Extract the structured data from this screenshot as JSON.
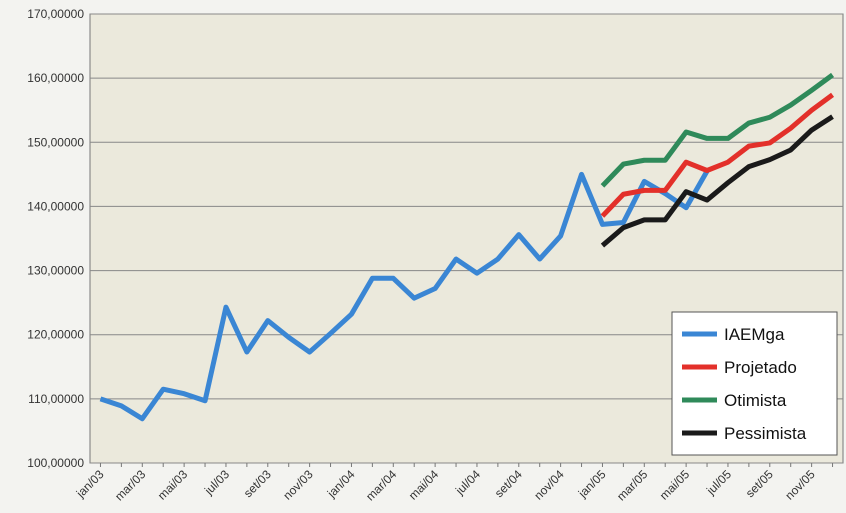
{
  "chart_data": {
    "type": "line",
    "categories": [
      "jan/03",
      null,
      "mar/03",
      null,
      "mai/03",
      null,
      "jul/03",
      null,
      "set/03",
      null,
      "nov/03",
      null,
      "jan/04",
      null,
      "mar/04",
      null,
      "mai/04",
      null,
      "jul/04",
      null,
      "set/04",
      null,
      "nov/04",
      null,
      "jan/05",
      null,
      "mar/05",
      null,
      "mai/05",
      null,
      "jul/05",
      null,
      "set/05",
      null,
      "nov/05",
      null
    ],
    "series": [
      {
        "name": "IAEMga",
        "color": "#3a86d4",
        "values": [
          110.0,
          108.9,
          106.9,
          111.5,
          110.8,
          109.7,
          124.3,
          117.3,
          122.2,
          119.6,
          117.3,
          120.2,
          123.2,
          128.8,
          128.8,
          125.7,
          127.2,
          131.8,
          129.6,
          131.8,
          135.6,
          131.8,
          135.4,
          145.0,
          137.2,
          137.5,
          143.9,
          142.0,
          139.8,
          145.5,
          null,
          null,
          null,
          null,
          null,
          null
        ]
      },
      {
        "name": "Projetado",
        "color": "#e3302a",
        "values": [
          null,
          null,
          null,
          null,
          null,
          null,
          null,
          null,
          null,
          null,
          null,
          null,
          null,
          null,
          null,
          null,
          null,
          null,
          null,
          null,
          null,
          null,
          null,
          null,
          138.5,
          141.9,
          142.5,
          142.5,
          146.9,
          145.6,
          146.9,
          149.4,
          149.9,
          152.2,
          155.0,
          157.4
        ]
      },
      {
        "name": "Otimista",
        "color": "#2f8a5a",
        "values": [
          null,
          null,
          null,
          null,
          null,
          null,
          null,
          null,
          null,
          null,
          null,
          null,
          null,
          null,
          null,
          null,
          null,
          null,
          null,
          null,
          null,
          null,
          null,
          null,
          143.2,
          146.6,
          147.2,
          147.2,
          151.6,
          150.6,
          150.6,
          153.0,
          153.9,
          155.8,
          158.1,
          160.5
        ]
      },
      {
        "name": "Pessimista",
        "color": "#1a1a1a",
        "values": [
          null,
          null,
          null,
          null,
          null,
          null,
          null,
          null,
          null,
          null,
          null,
          null,
          null,
          null,
          null,
          null,
          null,
          null,
          null,
          null,
          null,
          null,
          null,
          null,
          133.9,
          136.7,
          137.9,
          137.9,
          142.3,
          141.0,
          143.7,
          146.2,
          147.3,
          148.8,
          151.9,
          154.0
        ]
      }
    ],
    "ylim": [
      100,
      170
    ],
    "yticks": [
      {
        "value": 100,
        "label": "100,00000"
      },
      {
        "value": 110,
        "label": "110,00000"
      },
      {
        "value": 120,
        "label": "120,00000"
      },
      {
        "value": 130,
        "label": "130,00000"
      },
      {
        "value": 140,
        "label": "140,00000"
      },
      {
        "value": 150,
        "label": "150,00000"
      },
      {
        "value": 160,
        "label": "160,00000"
      },
      {
        "value": 170,
        "label": "170,00000"
      }
    ],
    "grid": true,
    "legend": "lower-right"
  }
}
